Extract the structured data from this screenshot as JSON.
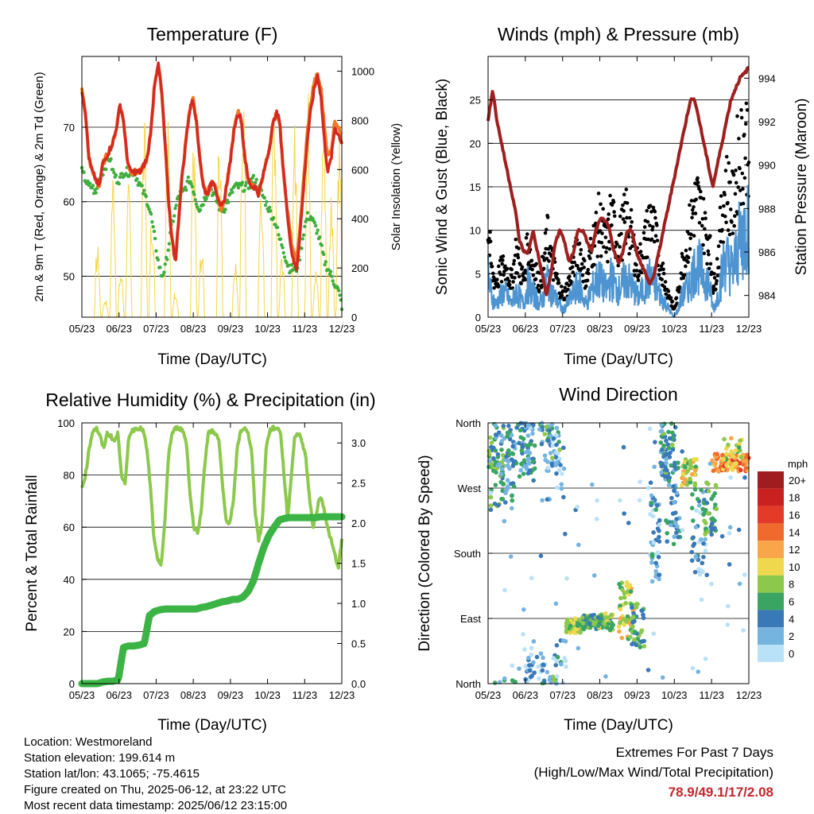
{
  "station_info": {
    "location": "Location: Westmoreland",
    "elevation": "Station elevation: 199.614 m",
    "latlon": "Station lat/lon: 43.1065; -75.4615",
    "created": "Figure created on Thu, 2025-06-12, at 23:22 UTC",
    "recent": "Most recent data timestamp: 2025/06/12 23:15:00"
  },
  "extremes": {
    "title": "Extremes For Past 7 Days",
    "subtitle": "(High/Low/Max Wind/Total Precipitation)",
    "values": "78.9/49.1/17/2.08",
    "value_color": "#c0272d"
  },
  "chart_data": [
    {
      "type": "line",
      "title": "Temperature (F)",
      "xlabel": "Time (Day/UTC)",
      "ylabel": "2m & 9m T (Red, Orange) & 2m Td (Green)",
      "y2label": "Solar Insolation (Yellow)",
      "x_ticks": [
        "05/23",
        "06/23",
        "07/23",
        "08/23",
        "09/23",
        "10/23",
        "11/23",
        "12/23"
      ],
      "y_ticks": [
        "50",
        "60",
        "70"
      ],
      "y2_ticks": [
        "0",
        "200",
        "400",
        "600",
        "800",
        "1000"
      ],
      "ylim": [
        44.5,
        79.5
      ],
      "y2lim": [
        0,
        1060
      ],
      "series": [
        {
          "name": "2m T",
          "color": "#d42a20",
          "values": [
            75,
            72,
            66,
            64,
            63,
            62,
            65,
            66,
            67,
            68,
            70,
            73,
            71,
            66,
            64,
            64,
            64,
            64,
            65,
            66,
            70,
            76,
            78.5,
            75,
            68,
            60,
            55,
            52,
            58,
            64,
            68,
            72,
            74,
            71,
            66,
            62,
            61,
            62,
            63,
            61,
            59,
            60,
            63,
            66,
            70,
            72,
            71,
            66,
            63,
            62,
            62,
            61,
            63,
            65,
            67,
            70,
            72,
            71,
            65,
            60,
            55,
            52,
            51,
            56,
            62,
            68,
            72,
            75,
            77,
            74,
            68,
            64,
            66,
            70,
            69,
            68
          ]
        },
        {
          "name": "9m T",
          "color": "#f07a28",
          "values": [
            75,
            72,
            66,
            64,
            63,
            62,
            65,
            66,
            67,
            68,
            70,
            73,
            71,
            66,
            64,
            64,
            64,
            64,
            65,
            66,
            70,
            76,
            78.5,
            75,
            68,
            60,
            55,
            52,
            58,
            64,
            68,
            72,
            74,
            71,
            66,
            62,
            61,
            62,
            63,
            61,
            59,
            60,
            63,
            66,
            70,
            72,
            71,
            66,
            63,
            62,
            62,
            61,
            63,
            65,
            67,
            70,
            72,
            71,
            65,
            60,
            56,
            53,
            52,
            57,
            63,
            69,
            73,
            76,
            77,
            75,
            70,
            66,
            67,
            71,
            70,
            68
          ]
        },
        {
          "name": "2m Td",
          "color": "#3fae3d",
          "values": [
            64,
            63,
            62,
            62,
            61,
            63,
            64,
            65,
            66,
            64,
            63,
            63,
            64,
            64,
            64,
            64,
            63,
            62,
            61,
            60,
            58,
            55,
            52,
            50,
            51,
            54,
            57,
            59,
            61,
            61,
            62,
            63,
            62,
            60,
            59,
            60,
            61,
            62,
            61,
            60,
            59,
            59,
            60,
            61,
            62,
            62,
            62,
            62,
            62,
            63,
            63,
            62,
            61,
            60,
            59,
            58,
            57,
            55,
            54,
            52,
            51,
            51,
            51,
            53,
            56,
            58,
            58,
            57,
            56,
            54,
            52,
            51,
            50,
            49,
            48,
            46
          ]
        },
        {
          "name": "Solar",
          "color": "#f5d545",
          "y2": true,
          "spikes": [
            [
              0.02,
              0
            ],
            [
              0.06,
              300
            ],
            [
              0.09,
              80
            ],
            [
              0.12,
              620
            ],
            [
              0.15,
              200
            ],
            [
              0.18,
              550
            ],
            [
              0.21,
              0
            ],
            [
              0.24,
              870
            ],
            [
              0.27,
              480
            ],
            [
              0.3,
              0
            ],
            [
              0.33,
              900
            ],
            [
              0.36,
              120
            ],
            [
              0.39,
              0
            ],
            [
              0.43,
              760
            ],
            [
              0.46,
              300
            ],
            [
              0.5,
              0
            ],
            [
              0.53,
              820
            ],
            [
              0.56,
              0
            ],
            [
              0.59,
              250
            ],
            [
              0.62,
              1000
            ],
            [
              0.66,
              0
            ],
            [
              0.69,
              600
            ],
            [
              0.72,
              0
            ],
            [
              0.74,
              960
            ],
            [
              0.77,
              300
            ],
            [
              0.8,
              0
            ],
            [
              0.82,
              820
            ],
            [
              0.85,
              0
            ],
            [
              0.87,
              940
            ],
            [
              0.9,
              200
            ],
            [
              0.93,
              880
            ],
            [
              0.96,
              540
            ],
            [
              0.99,
              780
            ]
          ]
        }
      ]
    },
    {
      "type": "scatter",
      "title": "Winds (mph) & Pressure (mb)",
      "xlabel": "Time (Day/UTC)",
      "ylabel": "Sonic Wind & Gust (Blue, Black)",
      "y2label": "Station Pressure (Maroon)",
      "x_ticks": [
        "05/23",
        "06/23",
        "07/23",
        "08/23",
        "09/23",
        "10/23",
        "11/23",
        "12/23"
      ],
      "y_ticks": [
        "0",
        "5",
        "10",
        "15",
        "20",
        "25"
      ],
      "y2_ticks": [
        "984",
        "986",
        "988",
        "990",
        "992",
        "994"
      ],
      "ylim": [
        0,
        30
      ],
      "y2lim": [
        983,
        995
      ],
      "series": [
        {
          "name": "Wind",
          "color": "#4d94d0",
          "values": [
            6,
            3,
            2,
            3,
            4,
            3,
            2,
            4,
            3,
            2,
            5,
            4,
            3,
            2,
            3,
            6,
            4,
            3,
            2,
            1,
            2,
            3,
            4,
            5,
            3,
            2,
            4,
            5,
            6,
            5,
            4,
            6,
            5,
            4,
            5,
            6,
            5,
            4,
            3,
            4,
            5,
            6,
            5,
            4,
            3,
            2,
            1,
            0,
            1,
            3,
            4,
            5,
            7,
            8,
            7,
            6,
            5,
            1,
            3,
            6,
            9,
            8,
            7,
            10,
            12,
            13,
            14
          ]
        },
        {
          "name": "Gust",
          "color": "#000000",
          "values": [
            12,
            6,
            5,
            6,
            7,
            6,
            5,
            9,
            7,
            5,
            10,
            8,
            6,
            5,
            7,
            11,
            8,
            6,
            4,
            3,
            4,
            6,
            8,
            10,
            7,
            5,
            9,
            11,
            13,
            12,
            9,
            14,
            12,
            10,
            12,
            14,
            12,
            9,
            7,
            9,
            11,
            14,
            12,
            9,
            7,
            4,
            3,
            1,
            3,
            7,
            9,
            12,
            15,
            16,
            14,
            12,
            10,
            4,
            7,
            13,
            18,
            17,
            15,
            21,
            23,
            24,
            25
          ]
        },
        {
          "name": "Pressure",
          "color": "#9e1f1f",
          "values": [
            992,
            993.5,
            992,
            991,
            990,
            989,
            988,
            986.5,
            986,
            986,
            987,
            986,
            985,
            984,
            985,
            986.5,
            987,
            986.5,
            985.5,
            986,
            987,
            987,
            986.5,
            986,
            987,
            987.5,
            987.5,
            987,
            986,
            985.5,
            986,
            987,
            987,
            986,
            985.5,
            985,
            984.5,
            985,
            986,
            987,
            988,
            989,
            990,
            991,
            992,
            993,
            993,
            992,
            991,
            990,
            989,
            990,
            991,
            992,
            993,
            993.5,
            994,
            994.2,
            994.5
          ]
        }
      ]
    },
    {
      "type": "line",
      "title": "Relative Humidity (%) & Precipitation (in)",
      "xlabel": "Time (Day/UTC)",
      "ylabel": "Percent & Total Rainfall",
      "x_ticks": [
        "05/23",
        "06/23",
        "07/23",
        "08/23",
        "09/23",
        "10/23",
        "11/23",
        "12/23"
      ],
      "y_ticks": [
        "0",
        "20",
        "40",
        "60",
        "80",
        "100"
      ],
      "y2_ticks": [
        "0.0",
        "0.5",
        "1.0",
        "1.5",
        "2.0",
        "2.5",
        "3.0"
      ],
      "ylim": [
        0,
        100
      ],
      "y2lim": [
        0,
        3.25
      ],
      "series": [
        {
          "name": "RH",
          "color": "#8cc84b",
          "values": [
            75,
            80,
            90,
            97,
            98,
            95,
            90,
            96,
            95,
            93,
            96,
            80,
            76,
            95,
            97,
            98,
            98,
            97,
            90,
            75,
            55,
            47,
            46,
            62,
            88,
            96,
            98,
            98,
            97,
            92,
            72,
            60,
            58,
            65,
            84,
            96,
            97,
            96,
            93,
            75,
            62,
            62,
            70,
            90,
            97,
            98,
            96,
            90,
            66,
            55,
            62,
            90,
            97,
            98,
            98,
            97,
            80,
            63,
            80,
            95,
            96,
            93,
            87,
            72,
            60,
            66,
            72,
            68,
            60,
            55,
            50,
            44,
            55
          ]
        },
        {
          "name": "Precip",
          "color": "#3cb445",
          "values": [
            0,
            0,
            0,
            0,
            0.02,
            0.03,
            0.03,
            0.05,
            0.45,
            0.47,
            0.47,
            0.48,
            0.5,
            0.85,
            0.9,
            0.92,
            0.93,
            0.93,
            0.93,
            0.93,
            0.93,
            0.93,
            0.93,
            0.95,
            0.96,
            0.98,
            1.0,
            1.02,
            1.03,
            1.05,
            1.05,
            1.08,
            1.15,
            1.28,
            1.5,
            1.7,
            1.85,
            1.95,
            2.04,
            2.06,
            2.07,
            2.07,
            2.07,
            2.07,
            2.07,
            2.07,
            2.08,
            2.08,
            2.08,
            2.08,
            2.08
          ]
        }
      ]
    },
    {
      "type": "scatter",
      "title": "Wind Direction",
      "xlabel": "Time (Day/UTC)",
      "ylabel": "Direction (Colored By Speed)",
      "x_ticks": [
        "05/23",
        "06/23",
        "07/23",
        "08/23",
        "09/23",
        "10/23",
        "11/23",
        "12/23"
      ],
      "y_ticks": [
        "North",
        "East",
        "South",
        "West",
        "North"
      ],
      "ylim": [
        0,
        360
      ],
      "legend_title": "mph",
      "legend_labels": [
        "20+",
        "18",
        "16",
        "14",
        "12",
        "10",
        "8",
        "6",
        "4",
        "2",
        "0"
      ],
      "legend_colors": [
        "#a01d1f",
        "#c9211f",
        "#e33b28",
        "#f06a2d",
        "#f8a649",
        "#f0d84e",
        "#8cc84b",
        "#3aa563",
        "#3979b8",
        "#76b4e0",
        "#b9e1f7"
      ]
    }
  ]
}
